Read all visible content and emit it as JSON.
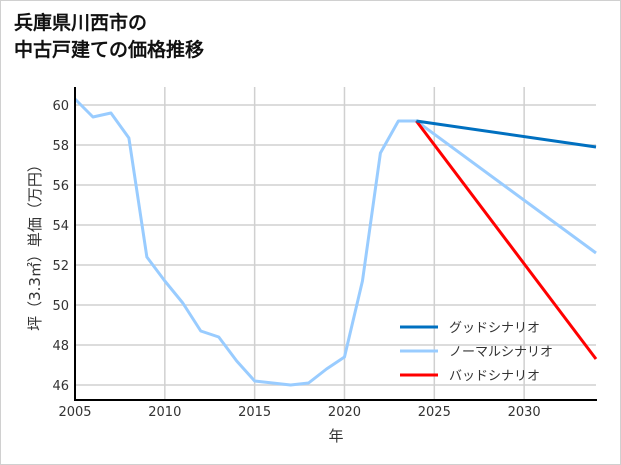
{
  "chart_data": {
    "type": "line",
    "title_lines": [
      "兵庫県川西市の",
      "中古戸建ての価格推移"
    ],
    "xlabel": "年",
    "ylabel": "坪（3.3㎡）単価（万円）",
    "xlim": [
      2005,
      2034
    ],
    "ylim": [
      45.25,
      60.9
    ],
    "xticks": [
      2005,
      2010,
      2015,
      2020,
      2025,
      2030
    ],
    "yticks": [
      46,
      48,
      50,
      52,
      54,
      56,
      58,
      60
    ],
    "grid": true,
    "legend_position": "bottom-right",
    "series": [
      {
        "name": "",
        "color": "#99ccff",
        "x": [
          2005,
          2006,
          2007,
          2008,
          2009,
          2010,
          2011,
          2012,
          2013,
          2014,
          2015,
          2016,
          2017,
          2018,
          2019,
          2020,
          2021,
          2022,
          2023,
          2024
        ],
        "y": [
          60.3,
          59.4,
          59.6,
          58.35,
          52.4,
          51.2,
          50.1,
          48.7,
          48.4,
          47.2,
          46.2,
          46.1,
          46.0,
          46.1,
          46.8,
          47.4,
          51.2,
          57.6,
          59.2,
          59.2
        ]
      },
      {
        "name": "グッドシナリオ",
        "color": "#0070c0",
        "x": [
          2024,
          2034
        ],
        "y": [
          59.2,
          57.9
        ]
      },
      {
        "name": "ノーマルシナリオ",
        "color": "#99ccff",
        "x": [
          2024,
          2034
        ],
        "y": [
          59.2,
          52.6
        ]
      },
      {
        "name": "バッドシナリオ",
        "color": "#ff0000",
        "x": [
          2024,
          2034
        ],
        "y": [
          59.2,
          47.3
        ]
      }
    ]
  }
}
